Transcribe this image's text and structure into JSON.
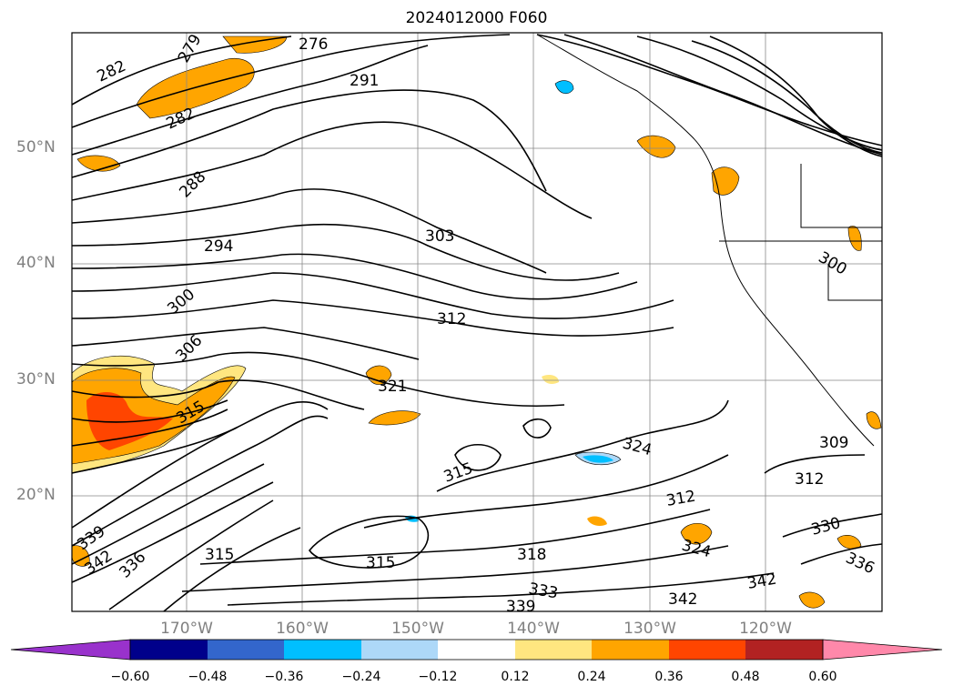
{
  "title": "2024012000 F060",
  "lat_labels": [
    "50°N",
    "40°N",
    "30°N",
    "20°N"
  ],
  "lon_labels": [
    "170°W",
    "160°W",
    "150°W",
    "140°W",
    "130°W",
    "120°W"
  ],
  "contour_labels": [
    "282",
    "279",
    "276",
    "291",
    "282",
    "288",
    "294",
    "303",
    "300",
    "300",
    "312",
    "306",
    "321",
    "315",
    "324",
    "315",
    "309",
    "312",
    "312",
    "318",
    "333",
    "339",
    "342",
    "330",
    "324",
    "336",
    "315",
    "342",
    "339",
    "336",
    "342",
    "315"
  ],
  "colorbar": {
    "colors": [
      "#9932CC",
      "#00008B",
      "#3366CC",
      "#00BFFF",
      "#ADD8F8",
      "#FFFFFF",
      "#FFE680",
      "#FFA500",
      "#FF4500",
      "#B22222",
      "#FF88AA"
    ],
    "ticks": [
      "−0.60",
      "−0.48",
      "−0.36",
      "−0.24",
      "−0.12",
      "0.12",
      "0.24",
      "0.36",
      "0.48",
      "0.60"
    ]
  },
  "shading_colors": {
    "light": "#FFE680",
    "mid": "#FFA500",
    "strong": "#FF4500",
    "neg": "#00BFFF",
    "neg_light": "#ADD8F8"
  }
}
